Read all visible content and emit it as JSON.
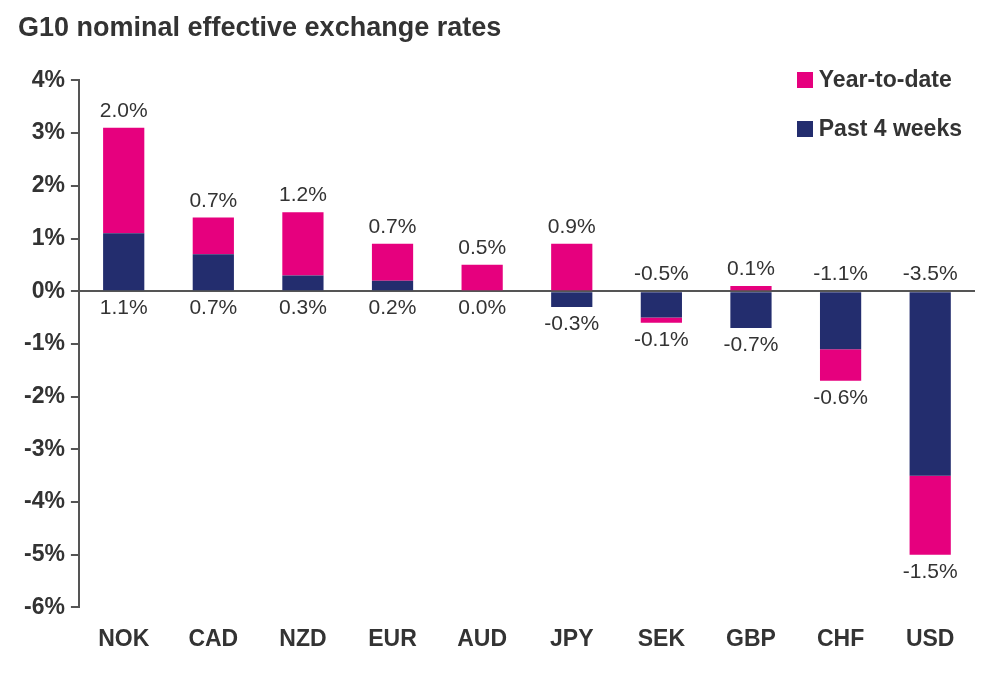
{
  "chart_data": {
    "type": "bar",
    "title": "G10 nominal effective exchange rates",
    "categories": [
      "NOK",
      "CAD",
      "NZD",
      "EUR",
      "AUD",
      "JPY",
      "SEK",
      "GBP",
      "CHF",
      "USD"
    ],
    "series": [
      {
        "name": "Past 4 weeks",
        "color": "#232d6e",
        "values": [
          1.1,
          0.7,
          0.3,
          0.2,
          0.0,
          -0.3,
          -0.5,
          -0.7,
          -1.1,
          -3.5
        ],
        "value_labels": [
          "1.1%",
          "0.7%",
          "0.3%",
          "0.2%",
          "0.0%",
          "-0.3%",
          "-0.5%",
          "-0.7%",
          "-1.1%",
          "-3.5%"
        ]
      },
      {
        "name": "Year-to-date",
        "color": "#e6007e",
        "values": [
          2.0,
          0.7,
          1.2,
          0.7,
          0.5,
          0.9,
          -0.1,
          0.1,
          -0.6,
          -1.5
        ],
        "value_labels": [
          "2.0%",
          "0.7%",
          "1.2%",
          "0.7%",
          "0.5%",
          "0.9%",
          "-0.1%",
          "0.1%",
          "-0.6%",
          "-1.5%"
        ]
      }
    ],
    "ylim": [
      -6,
      4
    ],
    "yticks": [
      {
        "value": -6,
        "label": "-6%"
      },
      {
        "value": -5,
        "label": "-5%"
      },
      {
        "value": -4,
        "label": "-4%"
      },
      {
        "value": -3,
        "label": "-3%"
      },
      {
        "value": -2,
        "label": "-2%"
      },
      {
        "value": -1,
        "label": "-1%"
      },
      {
        "value": 0,
        "label": "0%"
      },
      {
        "value": 1,
        "label": "1%"
      },
      {
        "value": 2,
        "label": "2%"
      },
      {
        "value": 3,
        "label": "3%"
      },
      {
        "value": 4,
        "label": "4%"
      }
    ],
    "grid": false,
    "stacked": true,
    "data_labels": true,
    "legend": "top-right"
  }
}
